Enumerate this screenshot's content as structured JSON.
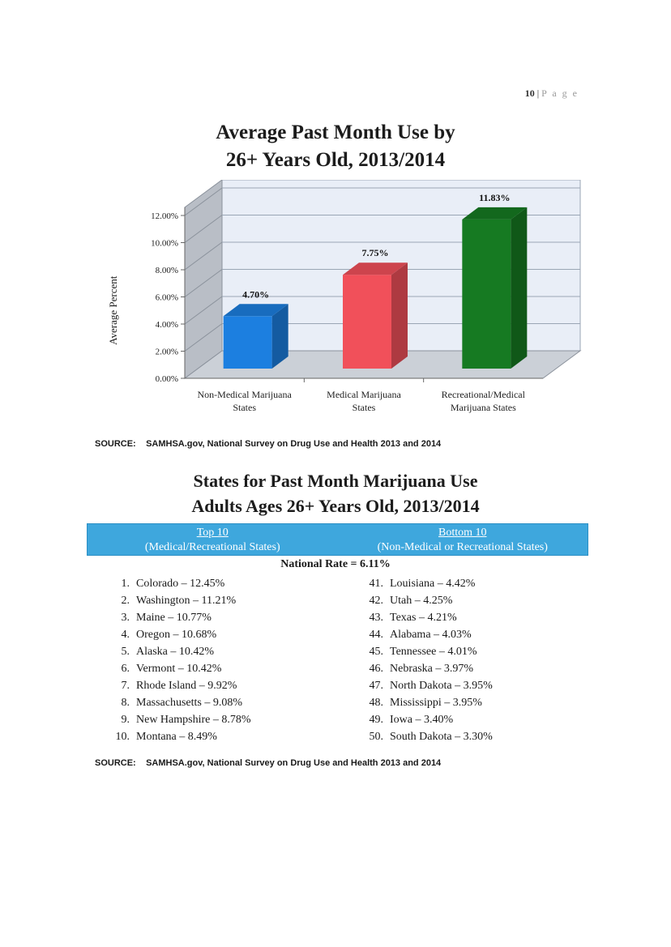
{
  "page": {
    "number": "10",
    "separator": "|",
    "label": "P a g e"
  },
  "chart_data": {
    "type": "bar",
    "title_lines": [
      "Average Past Month Use by",
      "26+ Years Old, 2013/2014"
    ],
    "ylabel": "Average Percent",
    "xlabel": "",
    "ylim": [
      0,
      12
    ],
    "yticks": [
      0,
      2,
      4,
      6,
      8,
      10,
      12
    ],
    "ytick_labels": [
      "0.00%",
      "2.00%",
      "4.00%",
      "6.00%",
      "8.00%",
      "10.00%",
      "12.00%"
    ],
    "categories": [
      [
        "Non-Medical Marijuana",
        "States"
      ],
      [
        "Medical Marijuana",
        "States"
      ],
      [
        "Recreational/Medical",
        "Marijuana States"
      ]
    ],
    "values": [
      4.7,
      7.75,
      11.83
    ],
    "value_labels": [
      "4.70%",
      "7.75%",
      "11.83%"
    ],
    "colors": [
      "#1c7fe0",
      "#f1505a",
      "#167a22"
    ],
    "grid": true,
    "legend": "none",
    "style": "3d"
  },
  "source1": {
    "label": "SOURCE:",
    "text": "SAMHSA.gov, National Survey on Drug Use and Health 2013 and 2014"
  },
  "states_title": [
    "States for Past Month Marijuana Use",
    "Adults Ages 26+ Years Old, 2013/2014"
  ],
  "header": {
    "top": {
      "title": "Top 10",
      "subtitle": "(Medical/Recreational States)"
    },
    "bottom": {
      "title": "Bottom 10",
      "subtitle": "(Non-Medical or Recreational States)"
    }
  },
  "national_rate": "National Rate = 6.11%",
  "top10": [
    {
      "n": "1.",
      "text": "Colorado – 12.45%"
    },
    {
      "n": "2.",
      "text": "Washington – 11.21%"
    },
    {
      "n": "3.",
      "text": "Maine – 10.77%"
    },
    {
      "n": "4.",
      "text": "Oregon – 10.68%"
    },
    {
      "n": "5.",
      "text": "Alaska – 10.42%"
    },
    {
      "n": "6.",
      "text": "Vermont – 10.42%"
    },
    {
      "n": "7.",
      "text": "Rhode Island – 9.92%"
    },
    {
      "n": "8.",
      "text": "Massachusetts – 9.08%"
    },
    {
      "n": "9.",
      "text": "New Hampshire – 8.78%"
    },
    {
      "n": "10.",
      "text": "Montana – 8.49%"
    }
  ],
  "bottom10": [
    {
      "n": "41.",
      "text": "Louisiana – 4.42%"
    },
    {
      "n": "42.",
      "text": "Utah – 4.25%"
    },
    {
      "n": "43.",
      "text": "Texas – 4.21%"
    },
    {
      "n": "44.",
      "text": "Alabama – 4.03%"
    },
    {
      "n": "45.",
      "text": "Tennessee – 4.01%"
    },
    {
      "n": "46.",
      "text": "Nebraska – 3.97%"
    },
    {
      "n": "47.",
      "text": "North Dakota – 3.95%"
    },
    {
      "n": "48.",
      "text": "Mississippi – 3.95%"
    },
    {
      "n": "49.",
      "text": "Iowa – 3.40%"
    },
    {
      "n": "50.",
      "text": "South Dakota – 3.30%"
    }
  ],
  "source2": {
    "label": "SOURCE:",
    "text": "SAMHSA.gov, National Survey on Drug Use and Health 2013 and 2014"
  }
}
